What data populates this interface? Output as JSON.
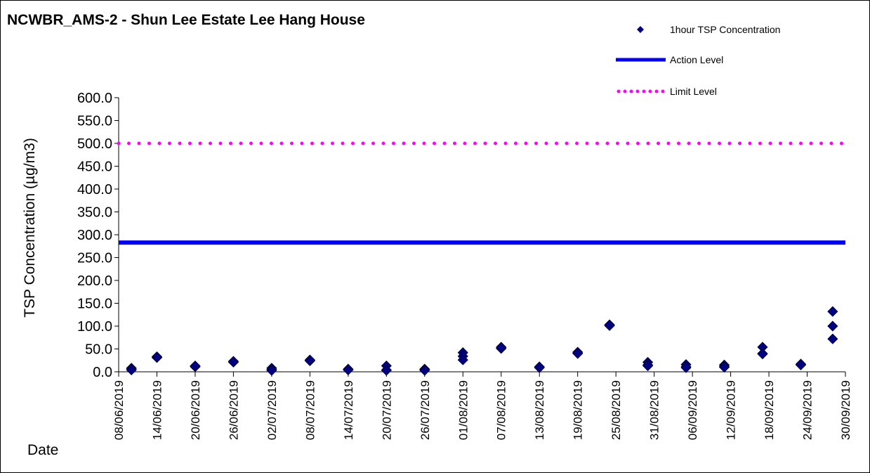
{
  "chart_data": {
    "type": "scatter",
    "title": "NCWBR_AMS-2 - Shun Lee Estate Lee Hang House",
    "ylabel": "TSP Concentration (µg/m3)",
    "xlabel": "Date",
    "ylim": [
      0,
      600
    ],
    "y_ticks": [
      "0.0",
      "50.0",
      "100.0",
      "150.0",
      "200.0",
      "250.0",
      "300.0",
      "350.0",
      "400.0",
      "450.0",
      "500.0",
      "550.0",
      "600.0"
    ],
    "x_range": [
      "08/06/2019",
      "30/09/2019"
    ],
    "x_ticks": [
      "08/06/2019",
      "14/06/2019",
      "20/06/2019",
      "26/06/2019",
      "02/07/2019",
      "08/07/2019",
      "14/07/2019",
      "20/07/2019",
      "26/07/2019",
      "01/08/2019",
      "07/08/2019",
      "13/08/2019",
      "19/08/2019",
      "25/08/2019",
      "31/08/2019",
      "06/09/2019",
      "12/09/2019",
      "18/09/2019",
      "24/09/2019",
      "30/09/2019"
    ],
    "grid": false,
    "legend_position": "top-right",
    "series": [
      {
        "name": "1hour TSP Concentration",
        "kind": "points",
        "marker": "diamond",
        "color": "#000080",
        "points": [
          {
            "x": "10/06/2019",
            "y": 8
          },
          {
            "x": "10/06/2019",
            "y": 6
          },
          {
            "x": "10/06/2019",
            "y": 4
          },
          {
            "x": "14/06/2019",
            "y": 33
          },
          {
            "x": "14/06/2019",
            "y": 31
          },
          {
            "x": "14/06/2019",
            "y": 32
          },
          {
            "x": "20/06/2019",
            "y": 12
          },
          {
            "x": "20/06/2019",
            "y": 11
          },
          {
            "x": "20/06/2019",
            "y": 13
          },
          {
            "x": "26/06/2019",
            "y": 23
          },
          {
            "x": "26/06/2019",
            "y": 21
          },
          {
            "x": "26/06/2019",
            "y": 22
          },
          {
            "x": "02/07/2019",
            "y": 8
          },
          {
            "x": "02/07/2019",
            "y": 5
          },
          {
            "x": "02/07/2019",
            "y": 3
          },
          {
            "x": "08/07/2019",
            "y": 26
          },
          {
            "x": "08/07/2019",
            "y": 24
          },
          {
            "x": "08/07/2019",
            "y": 25
          },
          {
            "x": "14/07/2019",
            "y": 5
          },
          {
            "x": "14/07/2019",
            "y": 6
          },
          {
            "x": "14/07/2019",
            "y": 4
          },
          {
            "x": "20/07/2019",
            "y": 13
          },
          {
            "x": "20/07/2019",
            "y": 4
          },
          {
            "x": "20/07/2019",
            "y": 3
          },
          {
            "x": "26/07/2019",
            "y": 6
          },
          {
            "x": "26/07/2019",
            "y": 5
          },
          {
            "x": "26/07/2019",
            "y": 3
          },
          {
            "x": "01/08/2019",
            "y": 42
          },
          {
            "x": "01/08/2019",
            "y": 34
          },
          {
            "x": "01/08/2019",
            "y": 26
          },
          {
            "x": "07/08/2019",
            "y": 54
          },
          {
            "x": "07/08/2019",
            "y": 51
          },
          {
            "x": "07/08/2019",
            "y": 52
          },
          {
            "x": "13/08/2019",
            "y": 11
          },
          {
            "x": "13/08/2019",
            "y": 9
          },
          {
            "x": "13/08/2019",
            "y": 10
          },
          {
            "x": "19/08/2019",
            "y": 43
          },
          {
            "x": "19/08/2019",
            "y": 40
          },
          {
            "x": "19/08/2019",
            "y": 41
          },
          {
            "x": "24/08/2019",
            "y": 103
          },
          {
            "x": "24/08/2019",
            "y": 101
          },
          {
            "x": "24/08/2019",
            "y": 102
          },
          {
            "x": "30/08/2019",
            "y": 21
          },
          {
            "x": "30/08/2019",
            "y": 15
          },
          {
            "x": "30/08/2019",
            "y": 13
          },
          {
            "x": "05/09/2019",
            "y": 16
          },
          {
            "x": "05/09/2019",
            "y": 11
          },
          {
            "x": "05/09/2019",
            "y": 9
          },
          {
            "x": "11/09/2019",
            "y": 15
          },
          {
            "x": "11/09/2019",
            "y": 12
          },
          {
            "x": "11/09/2019",
            "y": 10
          },
          {
            "x": "17/09/2019",
            "y": 54
          },
          {
            "x": "17/09/2019",
            "y": 40
          },
          {
            "x": "17/09/2019",
            "y": 39
          },
          {
            "x": "23/09/2019",
            "y": 17
          },
          {
            "x": "23/09/2019",
            "y": 15
          },
          {
            "x": "23/09/2019",
            "y": 16
          },
          {
            "x": "28/09/2019",
            "y": 132
          },
          {
            "x": "28/09/2019",
            "y": 100
          },
          {
            "x": "28/09/2019",
            "y": 72
          }
        ]
      },
      {
        "name": "Action Level",
        "kind": "line",
        "style": "solid",
        "color": "#0000ff",
        "y": 282.8
      },
      {
        "name": "Limit Level",
        "kind": "line",
        "style": "dotted",
        "color": "#ff00ff",
        "y": 500
      }
    ]
  }
}
